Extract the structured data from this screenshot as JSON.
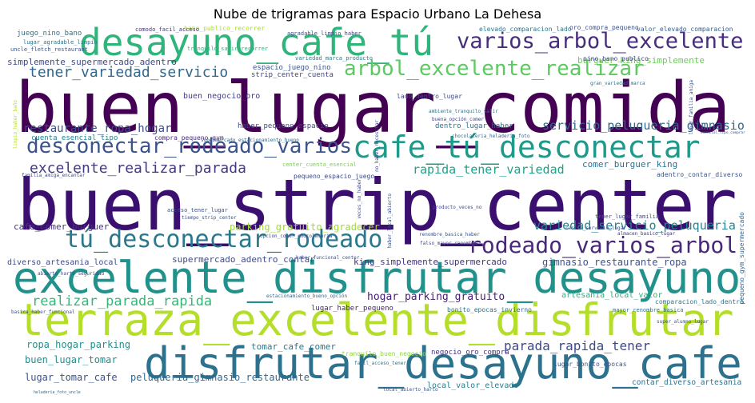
{
  "title": "Nube de trigramas para Espacio Urbano La Dehesa",
  "palette": "viridis",
  "words": [
    {
      "text": "buen_lugar_comida",
      "weight": 1.0,
      "color": "#440154"
    },
    {
      "text": "buen_strip_center",
      "weight": 0.96,
      "color": "#3b0f70"
    },
    {
      "text": "terraza_excelente_disfrutar",
      "weight": 0.63,
      "color": "#b5de2b"
    },
    {
      "text": "excelente_disfrutar_desayuno",
      "weight": 0.6,
      "color": "#21918c"
    },
    {
      "text": "disfrutar_desayuno_cafe",
      "weight": 0.6,
      "color": "#2c728e"
    },
    {
      "text": "desayuno_cafe_tú",
      "weight": 0.52,
      "color": "#2fb47c"
    },
    {
      "text": "cafe_tú_desconectar",
      "weight": 0.42,
      "color": "#1f9a8a"
    },
    {
      "text": "varios_arbol_excelente",
      "weight": 0.36,
      "color": "#472d7b"
    },
    {
      "text": "tú_desconectar_rodeado",
      "weight": 0.36,
      "color": "#2a788e"
    },
    {
      "text": "rodeado_varios_arbol",
      "weight": 0.34,
      "color": "#482878"
    },
    {
      "text": "desconectar_rodeado_varios",
      "weight": 0.31,
      "color": "#3b528b"
    },
    {
      "text": "arbol_excelente_realizar",
      "weight": 0.3,
      "color": "#5ec962"
    },
    {
      "text": "excelente_realizar_parada",
      "weight": 0.22,
      "color": "#443983"
    },
    {
      "text": "tener_variedad_servicio",
      "weight": 0.22,
      "color": "#31688e"
    },
    {
      "text": "realizar_parada_rapida",
      "weight": 0.22,
      "color": "#35b779"
    },
    {
      "text": "parada_rapida_tener",
      "weight": 0.2,
      "color": "#3e4a89"
    },
    {
      "text": "servicio_peluqueria_gimnasio",
      "weight": 0.19,
      "color": "#31688e"
    },
    {
      "text": "variedad_servicio_peluqueria",
      "weight": 0.18,
      "color": "#25848e"
    },
    {
      "text": "rapida_tener_variedad",
      "weight": 0.18,
      "color": "#1fa187"
    },
    {
      "text": "restaurante_ropa_hogar",
      "weight": 0.17,
      "color": "#3e4a89"
    },
    {
      "text": "hogar_parking_gratuito",
      "weight": 0.17,
      "color": "#481f70"
    },
    {
      "text": "gimnasio_restaurante_ropa",
      "weight": 0.15,
      "color": "#3b528b"
    },
    {
      "text": "ropa_hogar_parking",
      "weight": 0.15,
      "color": "#21918c"
    },
    {
      "text": "peluqueria_gimnasio_restaurante",
      "weight": 0.14,
      "color": "#31688e"
    },
    {
      "text": "parking_gratuito_agradecer",
      "weight": 0.14,
      "color": "#a0da39"
    },
    {
      "text": "lugar_tomar_cafe",
      "weight": 0.14,
      "color": "#3b528b"
    },
    {
      "text": "buen_lugar_tomar",
      "weight": 0.14,
      "color": "#218f8d"
    },
    {
      "text": "tomar_cafe_comer",
      "weight": 0.14,
      "color": "#2a788e"
    },
    {
      "text": "cafe_comer_burguer",
      "weight": 0.14,
      "color": "#46337f"
    },
    {
      "text": "king_simplemente_supermercado",
      "weight": 0.13,
      "color": "#46337f"
    },
    {
      "text": "supermercado_adentro_contar",
      "weight": 0.13,
      "color": "#3e4a89"
    },
    {
      "text": "burguer_king_simplemente",
      "weight": 0.13,
      "color": "#6ccd5a"
    },
    {
      "text": "comer_burguer_king",
      "weight": 0.12,
      "color": "#2c728e"
    },
    {
      "text": "simplemente_supermercado_adentro",
      "weight": 0.12,
      "color": "#3e4a89"
    },
    {
      "text": "contar_diverso_artesania",
      "weight": 0.11,
      "color": "#2c728e"
    },
    {
      "text": "diverso_artesania_local",
      "weight": 0.11,
      "color": "#3e4a89"
    },
    {
      "text": "artesania_local_valor",
      "weight": 0.11,
      "color": "#29af7f"
    },
    {
      "text": "local_valor_elevado",
      "weight": 0.11,
      "color": "#277f8e"
    },
    {
      "text": "buen_negocio_oro",
      "weight": 0.11,
      "color": "#433e85"
    },
    {
      "text": "negocio_oro_compra",
      "weight": 0.1,
      "color": "#46327e"
    },
    {
      "text": "lugar_haber_pequeno",
      "weight": 0.1,
      "color": "#482475"
    },
    {
      "text": "haber_pequeno_espacio",
      "weight": 0.1,
      "color": "#414487"
    },
    {
      "text": "dentro_lugar_haber",
      "weight": 0.1,
      "color": "#2c728e"
    },
    {
      "text": "nino_bano_publico",
      "weight": 0.1,
      "color": "#414487"
    },
    {
      "text": "strip_center_cuenta",
      "weight": 0.1,
      "color": "#414487"
    },
    {
      "text": "espacio_juego_nino",
      "weight": 0.1,
      "color": "#3b528b"
    },
    {
      "text": "juego_nino_bano",
      "weight": 0.1,
      "color": "#2c728e"
    },
    {
      "text": "adentro_contar_diverso",
      "weight": 0.09,
      "color": "#39568c"
    },
    {
      "text": "comparacion_lado_dentro",
      "weight": 0.09,
      "color": "#2a788e"
    },
    {
      "text": "valor_elevado_comparacion",
      "weight": 0.09,
      "color": "#355f8d"
    },
    {
      "text": "elevado_comparacion_lado",
      "weight": 0.09,
      "color": "#2a788e"
    },
    {
      "text": "oro_compra_pequeno",
      "weight": 0.09,
      "color": "#3b528b"
    },
    {
      "text": "lado_dentro_lugar",
      "weight": 0.09,
      "color": "#3e4a89"
    },
    {
      "text": "pequeno_espacio_juego",
      "weight": 0.09,
      "color": "#3e4a89"
    },
    {
      "text": "cuenta_esencial_tipo",
      "weight": 0.09,
      "color": "#26828e"
    },
    {
      "text": "compra_pequeno_gym",
      "weight": 0.09,
      "color": "#482878"
    },
    {
      "text": "variedad_marca_producto",
      "weight": 0.08,
      "color": "#2a788e"
    },
    {
      "text": "bonito_epocas_invierno",
      "weight": 0.08,
      "color": "#2c728e"
    },
    {
      "text": "lugar_bonito_epocas",
      "weight": 0.08,
      "color": "#39568c"
    },
    {
      "text": "tener_lugar_familia",
      "weight": 0.07,
      "color": "#3e4a89"
    },
    {
      "text": "tranquilo_buen_negocio",
      "weight": 0.08,
      "color": "#90d743"
    },
    {
      "text": "agradable_limpio_haber",
      "weight": 0.07,
      "color": "#3e4a89"
    },
    {
      "text": "bano_publico_recorrer",
      "weight": 0.07,
      "color": "#addc30"
    },
    {
      "text": "tranquilo_salir_recorrer",
      "weight": 0.07,
      "color": "#2fb47c"
    },
    {
      "text": "comodo_facil_acceso",
      "weight": 0.06,
      "color": "#46337f"
    },
    {
      "text": "lugar_agradable_limpio",
      "weight": 0.06,
      "color": "#2c728e"
    },
    {
      "text": "uncle_fletch_restaurant",
      "weight": 0.06,
      "color": "#3b528b"
    },
    {
      "text": "chocolateria_heladeria_foto",
      "weight": 0.06,
      "color": "#31688e"
    },
    {
      "text": "mayor_renombre_basica",
      "weight": 0.06,
      "color": "#2c728e"
    },
    {
      "text": "center_cuenta_esencial",
      "weight": 0.06,
      "color": "#7ad151"
    },
    {
      "text": "opcion_comer_chocolateria",
      "weight": 0.06,
      "color": "#3e4a89"
    },
    {
      "text": "haber_funcional_center",
      "weight": 0.06,
      "color": "#3b528b"
    },
    {
      "text": "supermercado_estacionamiento_bueno",
      "weight": 0.05,
      "color": "#31688e"
    },
    {
      "text": "acceso_tener_lugar",
      "weight": 0.06,
      "color": "#3b528b"
    },
    {
      "text": "facil_acceso_tener",
      "weight": 0.05,
      "color": "#2c728e"
    },
    {
      "text": "local_abierto_harto",
      "weight": 0.05,
      "color": "#3b528b"
    },
    {
      "text": "heladeria_foto_uncle",
      "weight": 0.05,
      "color": "#31688e"
    },
    {
      "text": "abierto_harto_seguridad",
      "weight": 0.05,
      "color": "#3e4a89"
    },
    {
      "text": "basica_haber_funcional",
      "weight": 0.05,
      "color": "#3b528b"
    },
    {
      "text": "buena_opción_comer",
      "weight": 0.05,
      "color": "#414487"
    },
    {
      "text": "ambiente_tranquilo_salir",
      "weight": 0.05,
      "color": "#2c728e"
    },
    {
      "text": "estacionamiento_bueno_opción",
      "weight": 0.05,
      "color": "#31688e"
    },
    {
      "text": "limpio_haber_baño",
      "weight": 0.05,
      "color": "#b8de29"
    },
    {
      "text": "pequeno_gym_supermercado",
      "weight": 0.06,
      "color": "#31688e"
    },
    {
      "text": "familia_amiga_encantar",
      "weight": 0.05,
      "color": "#3e4a89"
    },
    {
      "text": "veces_no_haber",
      "weight": 0.05,
      "color": "#3e4a89"
    },
    {
      "text": "producto_veces_no",
      "weight": 0.05,
      "color": "#3e4a89"
    },
    {
      "text": "gran_variedad_marca",
      "weight": 0.05,
      "color": "#2c728e"
    },
    {
      "text": "renombre_basica_haber",
      "weight": 0.05,
      "color": "#3b528b"
    },
    {
      "text": "falso_mayor_renombre",
      "weight": 0.05,
      "color": "#3e4a89"
    },
    {
      "text": "tiempo_strip_center",
      "weight": 0.05,
      "color": "#3b528b"
    },
    {
      "text": "haber_local_abierto",
      "weight": 0.05,
      "color": "#3b528b"
    },
    {
      "text": "no_haber_necesitar",
      "weight": 0.05,
      "color": "#3e4a89"
    },
    {
      "text": "lugar_familia_amiga",
      "weight": 0.05,
      "color": "#3b528b"
    },
    {
      "text": "esencial_tipo_comprar",
      "weight": 0.05,
      "color": "#3b528b"
    },
    {
      "text": "almacen_basico_lugar",
      "weight": 0.04,
      "color": "#46337f"
    },
    {
      "text": "super_alumno_lugar",
      "weight": 0.04,
      "color": "#3b528b"
    },
    {
      "text": "centro_servicio_lugar",
      "weight": 0.04,
      "color": "#3e4a89"
    }
  ]
}
